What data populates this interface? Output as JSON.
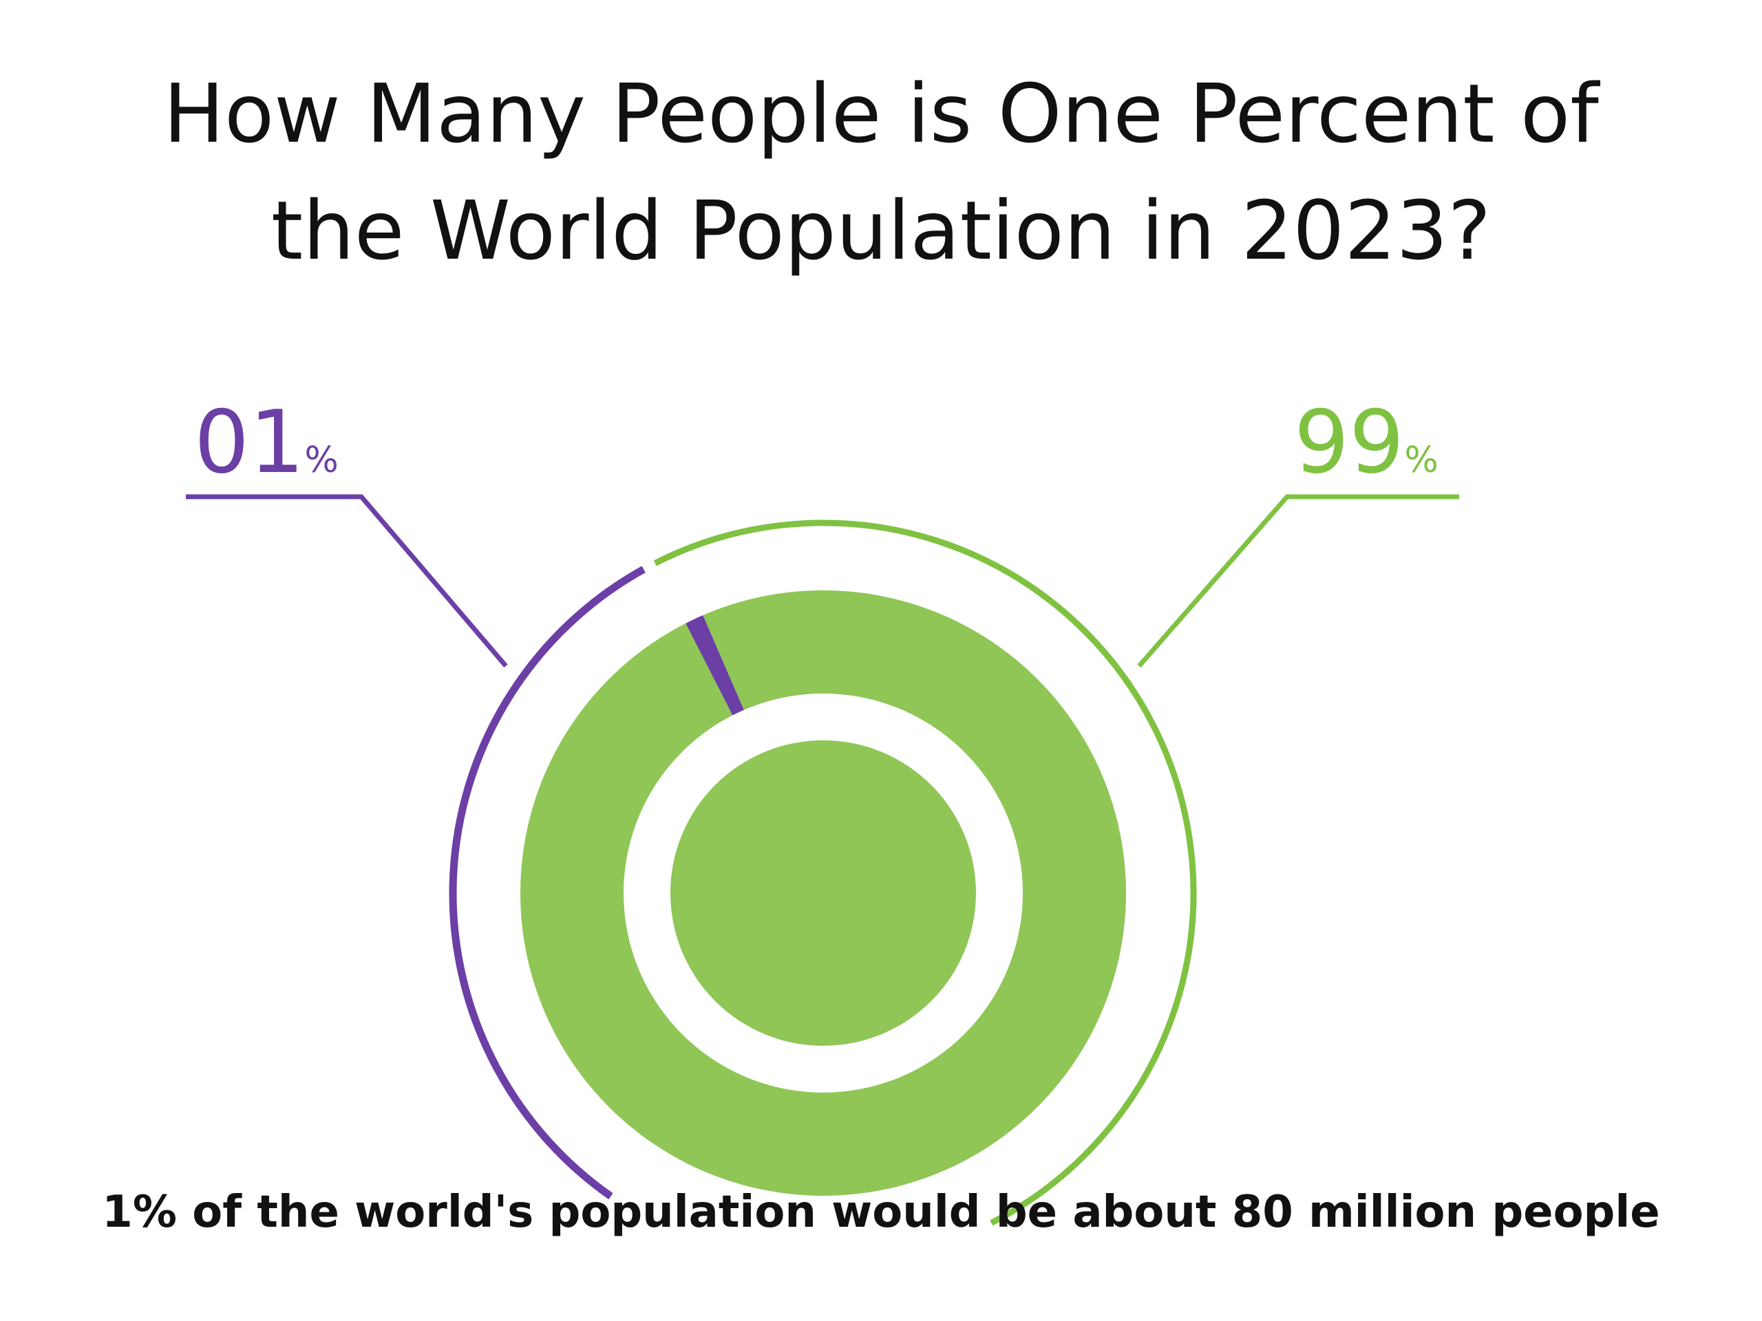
{
  "title": {
    "line1": "How Many People is One Percent of",
    "line2": "the World Population in 2023?"
  },
  "labels": {
    "left_number": "01",
    "left_symbol": "%",
    "right_number": "99",
    "right_symbol": "%"
  },
  "caption": "1% of the world's population would be about 80 million people",
  "colors": {
    "minor": "#6b3fa6",
    "major": "#8fc656",
    "major_line": "#7fc241"
  },
  "chart_data": {
    "type": "pie",
    "categories": [
      "01%",
      "99%"
    ],
    "values": [
      1,
      99
    ],
    "title": "How Many People is One Percent of the World Population in 2023?"
  }
}
